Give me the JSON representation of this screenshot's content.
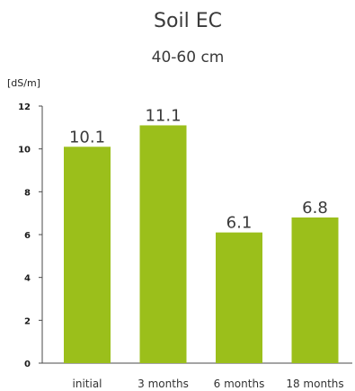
{
  "chart_data": {
    "type": "bar",
    "title": "Soil EC",
    "subtitle": "40-60 cm",
    "ylabel": "[dS/m]",
    "xlabel": "",
    "categories": [
      "initial",
      "3 months",
      "6 months",
      "18 months"
    ],
    "values": [
      10.1,
      11.1,
      6.1,
      6.8
    ],
    "data_labels": [
      "10.1",
      "11.1",
      "6.1",
      "6.8"
    ],
    "ylim": [
      0,
      12
    ],
    "yticks": [
      0,
      2,
      4,
      6,
      8,
      10,
      12
    ],
    "grid": false,
    "bar_color": "#9bbf1b",
    "axis_color": "#4a4a4a"
  }
}
